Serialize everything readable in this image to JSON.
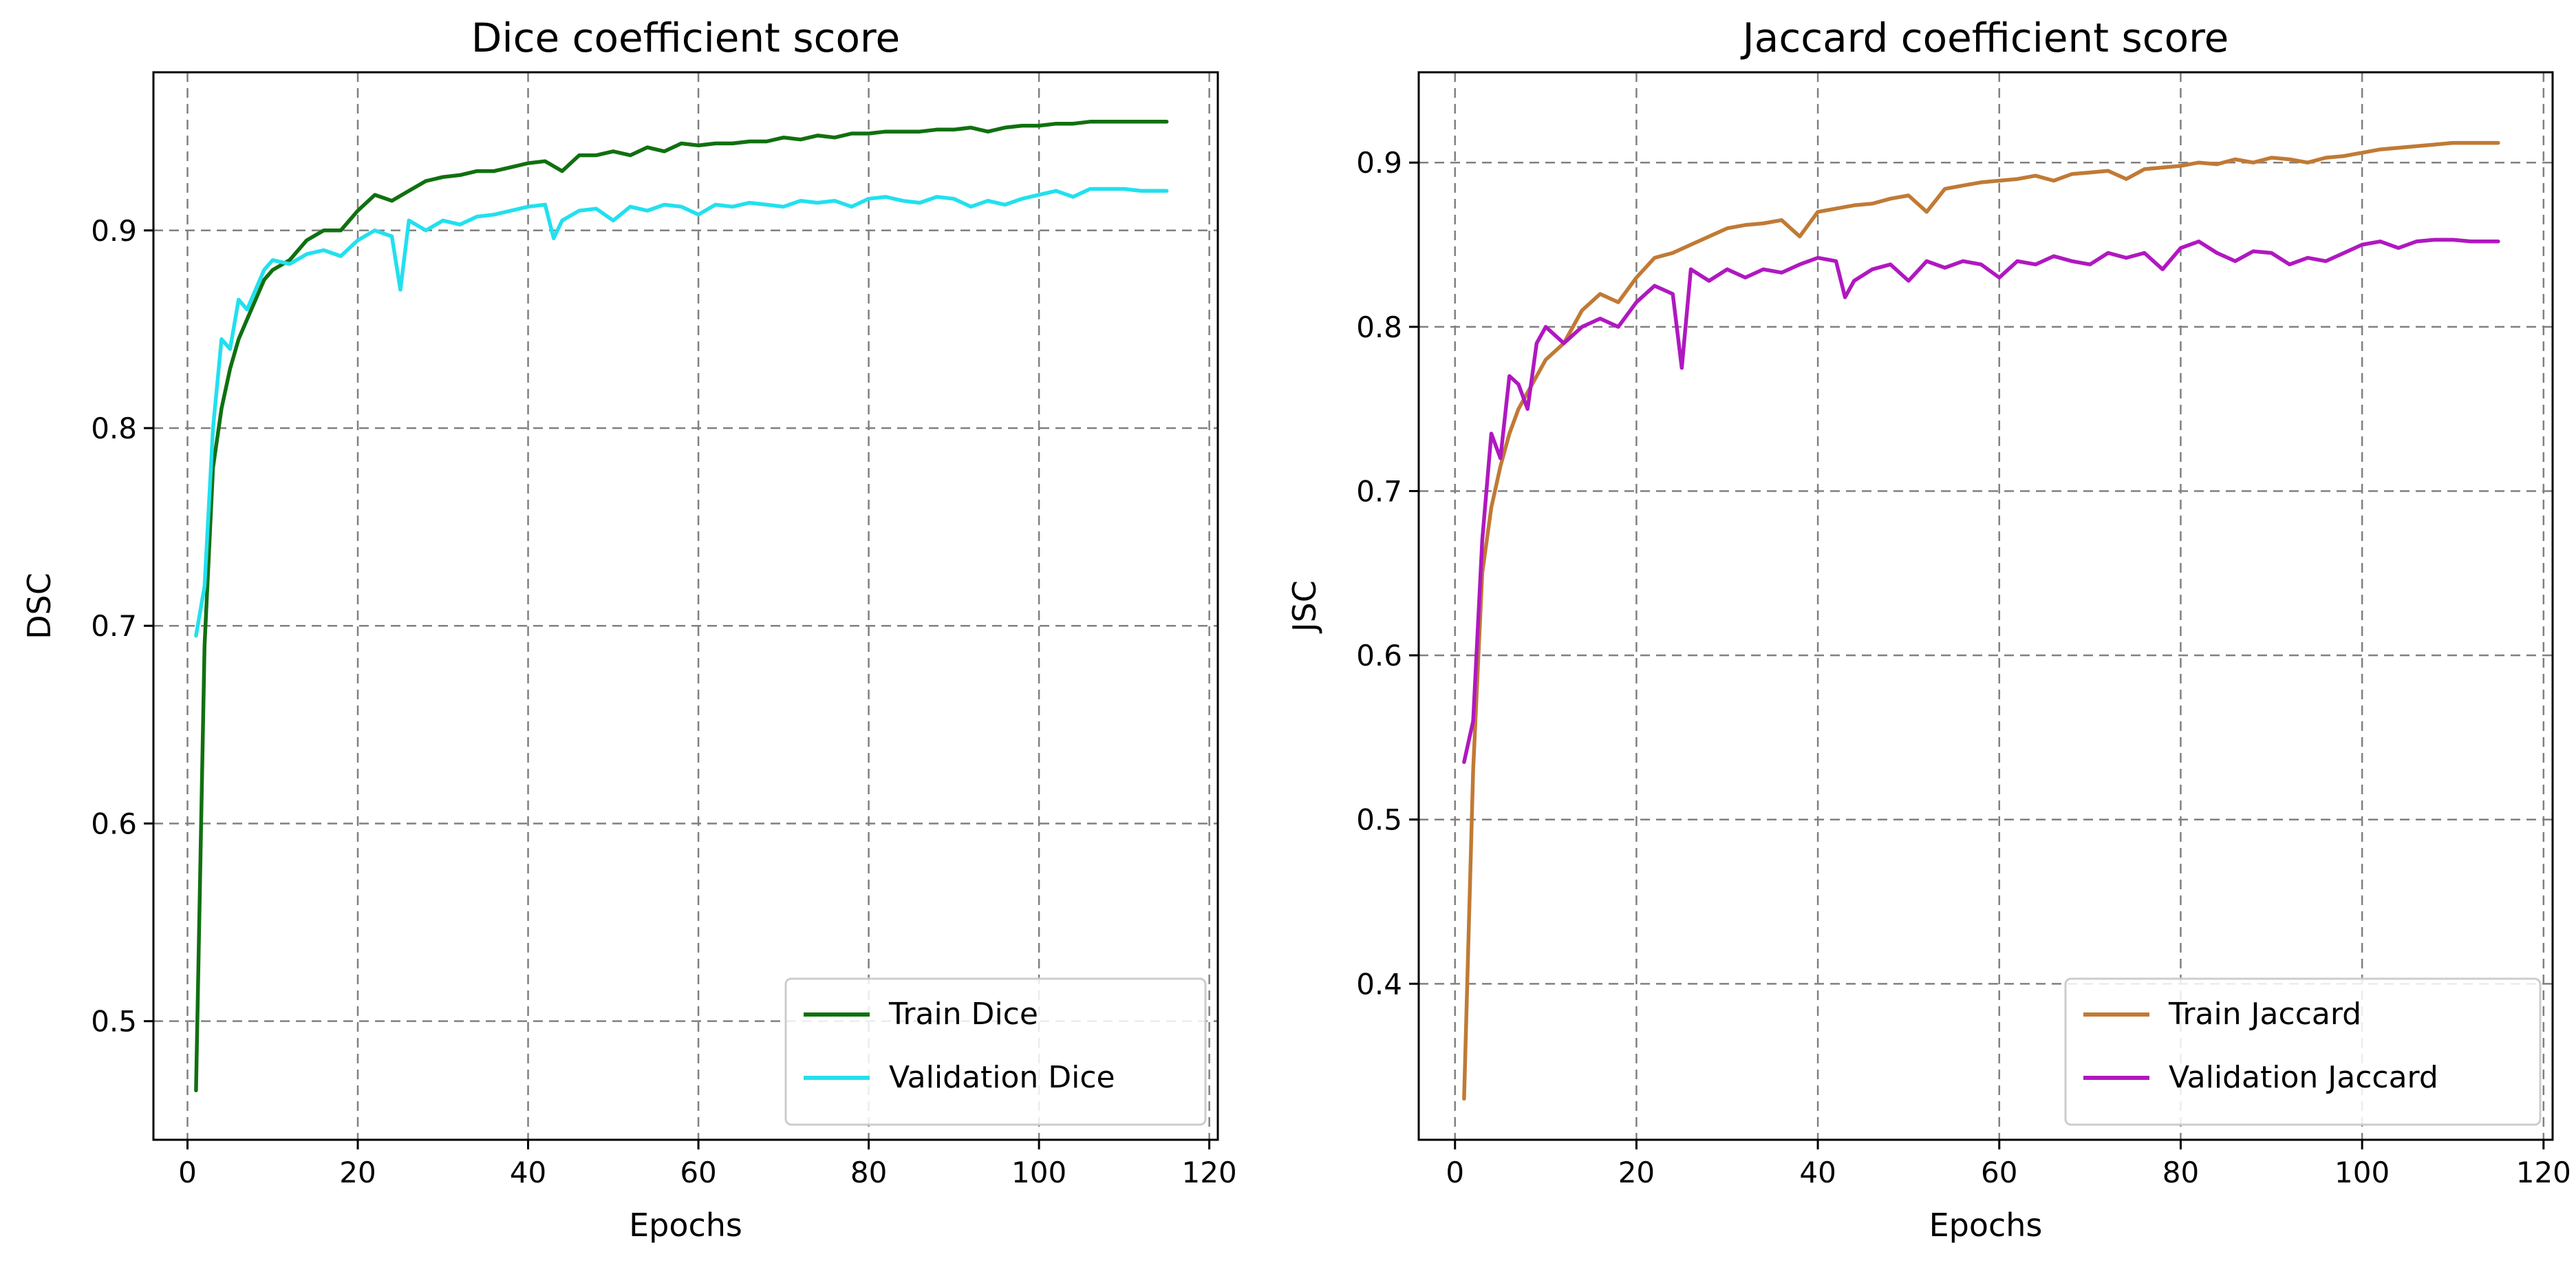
{
  "chart_data": [
    {
      "type": "line",
      "title": "Dice coefficient score",
      "xlabel": "Epochs",
      "ylabel": "DSC",
      "xlim": [
        -4,
        121
      ],
      "ylim": [
        0.44,
        0.98
      ],
      "xticks": [
        0,
        20,
        40,
        60,
        80,
        100,
        120
      ],
      "yticks": [
        0.5,
        0.6,
        0.7,
        0.8,
        0.9
      ],
      "ytick_labels": [
        "0.5",
        "0.6",
        "0.7",
        "0.8",
        "0.9"
      ],
      "grid": true,
      "legend_position": "lower-right",
      "series": [
        {
          "name": "Train Dice",
          "color": "#107010",
          "points": [
            [
              1,
              0.465
            ],
            [
              2,
              0.69
            ],
            [
              3,
              0.78
            ],
            [
              4,
              0.81
            ],
            [
              5,
              0.83
            ],
            [
              6,
              0.845
            ],
            [
              7,
              0.855
            ],
            [
              8,
              0.865
            ],
            [
              9,
              0.875
            ],
            [
              10,
              0.88
            ],
            [
              12,
              0.885
            ],
            [
              14,
              0.895
            ],
            [
              16,
              0.9
            ],
            [
              18,
              0.9
            ],
            [
              20,
              0.91
            ],
            [
              22,
              0.918
            ],
            [
              24,
              0.915
            ],
            [
              26,
              0.92
            ],
            [
              28,
              0.925
            ],
            [
              30,
              0.927
            ],
            [
              32,
              0.928
            ],
            [
              34,
              0.93
            ],
            [
              36,
              0.93
            ],
            [
              38,
              0.932
            ],
            [
              40,
              0.934
            ],
            [
              42,
              0.935
            ],
            [
              44,
              0.93
            ],
            [
              46,
              0.938
            ],
            [
              48,
              0.938
            ],
            [
              50,
              0.94
            ],
            [
              52,
              0.938
            ],
            [
              54,
              0.942
            ],
            [
              56,
              0.94
            ],
            [
              58,
              0.944
            ],
            [
              60,
              0.943
            ],
            [
              62,
              0.944
            ],
            [
              64,
              0.944
            ],
            [
              66,
              0.945
            ],
            [
              68,
              0.945
            ],
            [
              70,
              0.947
            ],
            [
              72,
              0.946
            ],
            [
              74,
              0.948
            ],
            [
              76,
              0.947
            ],
            [
              78,
              0.949
            ],
            [
              80,
              0.949
            ],
            [
              82,
              0.95
            ],
            [
              84,
              0.95
            ],
            [
              86,
              0.95
            ],
            [
              88,
              0.951
            ],
            [
              90,
              0.951
            ],
            [
              92,
              0.952
            ],
            [
              94,
              0.95
            ],
            [
              96,
              0.952
            ],
            [
              98,
              0.953
            ],
            [
              100,
              0.953
            ],
            [
              102,
              0.954
            ],
            [
              104,
              0.954
            ],
            [
              106,
              0.955
            ],
            [
              108,
              0.955
            ],
            [
              110,
              0.955
            ],
            [
              112,
              0.955
            ],
            [
              115,
              0.955
            ]
          ]
        },
        {
          "name": "Validation Dice",
          "color": "#22e0ee",
          "points": [
            [
              1,
              0.695
            ],
            [
              2,
              0.72
            ],
            [
              3,
              0.8
            ],
            [
              4,
              0.845
            ],
            [
              5,
              0.84
            ],
            [
              6,
              0.865
            ],
            [
              7,
              0.86
            ],
            [
              8,
              0.87
            ],
            [
              9,
              0.88
            ],
            [
              10,
              0.885
            ],
            [
              12,
              0.883
            ],
            [
              14,
              0.888
            ],
            [
              16,
              0.89
            ],
            [
              18,
              0.887
            ],
            [
              20,
              0.895
            ],
            [
              22,
              0.9
            ],
            [
              24,
              0.897
            ],
            [
              25,
              0.87
            ],
            [
              26,
              0.905
            ],
            [
              28,
              0.9
            ],
            [
              30,
              0.905
            ],
            [
              32,
              0.903
            ],
            [
              34,
              0.907
            ],
            [
              36,
              0.908
            ],
            [
              38,
              0.91
            ],
            [
              40,
              0.912
            ],
            [
              42,
              0.913
            ],
            [
              43,
              0.896
            ],
            [
              44,
              0.905
            ],
            [
              46,
              0.91
            ],
            [
              48,
              0.911
            ],
            [
              50,
              0.905
            ],
            [
              52,
              0.912
            ],
            [
              54,
              0.91
            ],
            [
              56,
              0.913
            ],
            [
              58,
              0.912
            ],
            [
              60,
              0.908
            ],
            [
              62,
              0.913
            ],
            [
              64,
              0.912
            ],
            [
              66,
              0.914
            ],
            [
              68,
              0.913
            ],
            [
              70,
              0.912
            ],
            [
              72,
              0.915
            ],
            [
              74,
              0.914
            ],
            [
              76,
              0.915
            ],
            [
              78,
              0.912
            ],
            [
              80,
              0.916
            ],
            [
              82,
              0.917
            ],
            [
              84,
              0.915
            ],
            [
              86,
              0.914
            ],
            [
              88,
              0.917
            ],
            [
              90,
              0.916
            ],
            [
              92,
              0.912
            ],
            [
              94,
              0.915
            ],
            [
              96,
              0.913
            ],
            [
              98,
              0.916
            ],
            [
              100,
              0.918
            ],
            [
              102,
              0.92
            ],
            [
              104,
              0.917
            ],
            [
              106,
              0.921
            ],
            [
              108,
              0.921
            ],
            [
              110,
              0.921
            ],
            [
              112,
              0.92
            ],
            [
              115,
              0.92
            ]
          ]
        }
      ]
    },
    {
      "type": "line",
      "title": "Jaccard coefficient score",
      "xlabel": "Epochs",
      "ylabel": "JSC",
      "xlim": [
        -4,
        121
      ],
      "ylim": [
        0.305,
        0.955
      ],
      "xticks": [
        0,
        20,
        40,
        60,
        80,
        100,
        120
      ],
      "yticks": [
        0.4,
        0.5,
        0.6,
        0.7,
        0.8,
        0.9
      ],
      "ytick_labels": [
        "0.4",
        "0.5",
        "0.6",
        "0.7",
        "0.8",
        "0.9"
      ],
      "grid": true,
      "legend_position": "lower-right",
      "series": [
        {
          "name": "Train Jaccard",
          "color": "#c07a35",
          "points": [
            [
              1,
              0.33
            ],
            [
              2,
              0.53
            ],
            [
              3,
              0.65
            ],
            [
              4,
              0.69
            ],
            [
              5,
              0.715
            ],
            [
              6,
              0.735
            ],
            [
              7,
              0.75
            ],
            [
              8,
              0.76
            ],
            [
              9,
              0.77
            ],
            [
              10,
              0.78
            ],
            [
              12,
              0.79
            ],
            [
              14,
              0.81
            ],
            [
              16,
              0.82
            ],
            [
              18,
              0.815
            ],
            [
              20,
              0.83
            ],
            [
              22,
              0.842
            ],
            [
              24,
              0.845
            ],
            [
              26,
              0.85
            ],
            [
              28,
              0.855
            ],
            [
              30,
              0.86
            ],
            [
              32,
              0.862
            ],
            [
              34,
              0.863
            ],
            [
              36,
              0.865
            ],
            [
              38,
              0.855
            ],
            [
              40,
              0.87
            ],
            [
              42,
              0.872
            ],
            [
              44,
              0.874
            ],
            [
              46,
              0.875
            ],
            [
              48,
              0.878
            ],
            [
              50,
              0.88
            ],
            [
              52,
              0.87
            ],
            [
              54,
              0.884
            ],
            [
              56,
              0.886
            ],
            [
              58,
              0.888
            ],
            [
              60,
              0.889
            ],
            [
              62,
              0.89
            ],
            [
              64,
              0.892
            ],
            [
              66,
              0.889
            ],
            [
              68,
              0.893
            ],
            [
              70,
              0.894
            ],
            [
              72,
              0.895
            ],
            [
              74,
              0.89
            ],
            [
              76,
              0.896
            ],
            [
              78,
              0.897
            ],
            [
              80,
              0.898
            ],
            [
              82,
              0.9
            ],
            [
              84,
              0.899
            ],
            [
              86,
              0.902
            ],
            [
              88,
              0.9
            ],
            [
              90,
              0.903
            ],
            [
              92,
              0.902
            ],
            [
              94,
              0.9
            ],
            [
              96,
              0.903
            ],
            [
              98,
              0.904
            ],
            [
              100,
              0.906
            ],
            [
              102,
              0.908
            ],
            [
              104,
              0.909
            ],
            [
              106,
              0.91
            ],
            [
              108,
              0.911
            ],
            [
              110,
              0.912
            ],
            [
              112,
              0.912
            ],
            [
              115,
              0.912
            ]
          ]
        },
        {
          "name": "Validation Jaccard",
          "color": "#b018c0",
          "points": [
            [
              1,
              0.535
            ],
            [
              2,
              0.56
            ],
            [
              3,
              0.67
            ],
            [
              4,
              0.735
            ],
            [
              5,
              0.72
            ],
            [
              6,
              0.77
            ],
            [
              7,
              0.765
            ],
            [
              8,
              0.75
            ],
            [
              9,
              0.79
            ],
            [
              10,
              0.8
            ],
            [
              12,
              0.79
            ],
            [
              14,
              0.8
            ],
            [
              16,
              0.805
            ],
            [
              18,
              0.8
            ],
            [
              20,
              0.815
            ],
            [
              22,
              0.825
            ],
            [
              24,
              0.82
            ],
            [
              25,
              0.775
            ],
            [
              26,
              0.835
            ],
            [
              28,
              0.828
            ],
            [
              30,
              0.835
            ],
            [
              32,
              0.83
            ],
            [
              34,
              0.835
            ],
            [
              36,
              0.833
            ],
            [
              38,
              0.838
            ],
            [
              40,
              0.842
            ],
            [
              42,
              0.84
            ],
            [
              43,
              0.818
            ],
            [
              44,
              0.828
            ],
            [
              46,
              0.835
            ],
            [
              48,
              0.838
            ],
            [
              50,
              0.828
            ],
            [
              52,
              0.84
            ],
            [
              54,
              0.836
            ],
            [
              56,
              0.84
            ],
            [
              58,
              0.838
            ],
            [
              60,
              0.83
            ],
            [
              62,
              0.84
            ],
            [
              64,
              0.838
            ],
            [
              66,
              0.843
            ],
            [
              68,
              0.84
            ],
            [
              70,
              0.838
            ],
            [
              72,
              0.845
            ],
            [
              74,
              0.842
            ],
            [
              76,
              0.845
            ],
            [
              78,
              0.835
            ],
            [
              80,
              0.848
            ],
            [
              82,
              0.852
            ],
            [
              84,
              0.845
            ],
            [
              86,
              0.84
            ],
            [
              88,
              0.846
            ],
            [
              90,
              0.845
            ],
            [
              92,
              0.838
            ],
            [
              94,
              0.842
            ],
            [
              96,
              0.84
            ],
            [
              98,
              0.845
            ],
            [
              100,
              0.85
            ],
            [
              102,
              0.852
            ],
            [
              104,
              0.848
            ],
            [
              106,
              0.852
            ],
            [
              108,
              0.853
            ],
            [
              110,
              0.853
            ],
            [
              112,
              0.852
            ],
            [
              115,
              0.852
            ]
          ]
        }
      ]
    }
  ]
}
